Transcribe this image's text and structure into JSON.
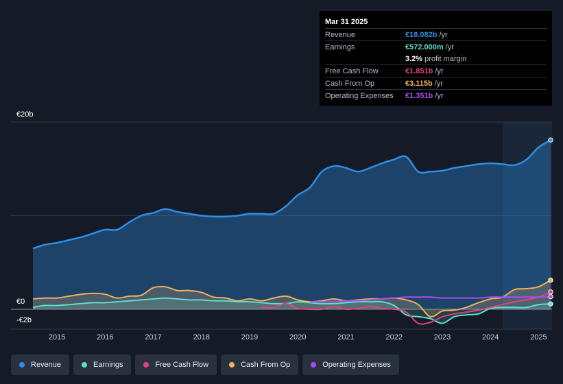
{
  "tooltip": {
    "date": "Mar 31 2025",
    "rows": [
      {
        "label": "Revenue",
        "value": "€18.082b",
        "unit": "/yr",
        "color": "#2e8ee8"
      },
      {
        "label": "Earnings",
        "value": "€572.000m",
        "unit": "/yr",
        "color": "#5be0d0"
      },
      {
        "label": "",
        "value": "3.2%",
        "unit": "profit margin",
        "color": "#ffffff"
      },
      {
        "label": "Free Cash Flow",
        "value": "€1.851b",
        "unit": "/yr",
        "color": "#e2427f"
      },
      {
        "label": "Cash From Op",
        "value": "€3.115b",
        "unit": "/yr",
        "color": "#f0b05e"
      },
      {
        "label": "Operating Expenses",
        "value": "€1.351b",
        "unit": "/yr",
        "color": "#a64ff0"
      }
    ]
  },
  "legend": [
    {
      "label": "Revenue",
      "color": "#2e8ee8"
    },
    {
      "label": "Earnings",
      "color": "#5be0d0"
    },
    {
      "label": "Free Cash Flow",
      "color": "#e2427f"
    },
    {
      "label": "Cash From Op",
      "color": "#f0b05e"
    },
    {
      "label": "Operating Expenses",
      "color": "#a64ff0"
    }
  ],
  "chart_data": {
    "type": "area",
    "title": "",
    "xlabel": "",
    "ylabel": "",
    "y_unit": "€b",
    "ylim": [
      -2,
      20
    ],
    "xlim": [
      2014.5,
      2025.25
    ],
    "y_tick_labels": [
      {
        "value": 20,
        "label": "€20b"
      },
      {
        "value": 0,
        "label": "€0"
      },
      {
        "value": -2,
        "label": "-€2b"
      }
    ],
    "x_tick_labels": [
      "2015",
      "2016",
      "2017",
      "2018",
      "2019",
      "2020",
      "2021",
      "2022",
      "2023",
      "2024",
      "2025"
    ],
    "x_tick_values": [
      2015,
      2016,
      2017,
      2018,
      2019,
      2020,
      2021,
      2022,
      2023,
      2024,
      2025
    ],
    "forecast_region_start": 2024.25,
    "series": [
      {
        "name": "Revenue",
        "color": "#2e8ee8",
        "fill": true,
        "x": [
          2014.5,
          2014.75,
          2015.0,
          2015.25,
          2015.5,
          2015.75,
          2016.0,
          2016.25,
          2016.5,
          2016.75,
          2017.0,
          2017.25,
          2017.5,
          2017.75,
          2018.0,
          2018.25,
          2018.5,
          2018.75,
          2019.0,
          2019.25,
          2019.5,
          2019.75,
          2020.0,
          2020.25,
          2020.5,
          2020.75,
          2021.0,
          2021.25,
          2021.5,
          2021.75,
          2022.0,
          2022.25,
          2022.5,
          2022.75,
          2023.0,
          2023.25,
          2023.5,
          2023.75,
          2024.0,
          2024.25,
          2024.5,
          2024.75,
          2025.0,
          2025.25
        ],
        "values": [
          6.5,
          6.9,
          7.1,
          7.4,
          7.7,
          8.1,
          8.5,
          8.5,
          9.3,
          10.0,
          10.3,
          10.7,
          10.4,
          10.2,
          10.0,
          9.9,
          9.9,
          10.0,
          10.2,
          10.2,
          10.2,
          11.0,
          12.2,
          13.0,
          14.7,
          15.3,
          15.1,
          14.7,
          15.1,
          15.6,
          16.0,
          16.3,
          14.7,
          14.7,
          14.8,
          15.1,
          15.3,
          15.5,
          15.6,
          15.5,
          15.4,
          16.0,
          17.3,
          18.082
        ]
      },
      {
        "name": "Earnings",
        "color": "#5be0d0",
        "fill": true,
        "x": [
          2014.5,
          2014.75,
          2015.0,
          2015.25,
          2015.5,
          2015.75,
          2016.0,
          2016.25,
          2016.5,
          2016.75,
          2017.0,
          2017.25,
          2017.5,
          2017.75,
          2018.0,
          2018.25,
          2018.5,
          2018.75,
          2019.0,
          2019.25,
          2019.5,
          2019.75,
          2020.0,
          2020.25,
          2020.5,
          2020.75,
          2021.0,
          2021.25,
          2021.5,
          2021.75,
          2022.0,
          2022.25,
          2022.5,
          2022.75,
          2023.0,
          2023.25,
          2023.5,
          2023.75,
          2024.0,
          2024.25,
          2024.5,
          2024.75,
          2025.0,
          2025.25
        ],
        "values": [
          0.2,
          0.4,
          0.4,
          0.5,
          0.6,
          0.7,
          0.7,
          0.8,
          0.9,
          1.0,
          1.1,
          1.2,
          1.1,
          1.0,
          1.0,
          0.9,
          0.9,
          0.8,
          0.8,
          0.7,
          0.6,
          0.6,
          0.8,
          0.7,
          0.6,
          0.6,
          0.7,
          0.8,
          0.8,
          0.8,
          0.4,
          -0.6,
          -0.8,
          -1.0,
          -1.5,
          -0.8,
          -0.6,
          -0.5,
          0.1,
          0.2,
          0.2,
          0.2,
          0.5,
          0.572
        ]
      },
      {
        "name": "Free Cash Flow",
        "color": "#e2427f",
        "fill": false,
        "x": [
          2019.25,
          2019.5,
          2019.75,
          2020.0,
          2020.25,
          2020.5,
          2020.75,
          2021.0,
          2021.25,
          2021.5,
          2021.75,
          2022.0,
          2022.25,
          2022.5,
          2022.75,
          2023.0,
          2023.25,
          2023.5,
          2023.75,
          2024.0,
          2024.25,
          2024.5,
          2024.75,
          2025.0,
          2025.25
        ],
        "values": [
          0.2,
          0.2,
          0.6,
          0.1,
          0.0,
          0.0,
          0.3,
          0.0,
          0.1,
          0.3,
          0.1,
          0.0,
          -0.3,
          -1.5,
          -1.4,
          -0.8,
          -0.5,
          -0.3,
          -0.1,
          0.2,
          0.5,
          0.8,
          1.0,
          1.3,
          1.851
        ]
      },
      {
        "name": "Cash From Op",
        "color": "#f0b05e",
        "fill": true,
        "x": [
          2014.5,
          2014.75,
          2015.0,
          2015.25,
          2015.5,
          2015.75,
          2016.0,
          2016.25,
          2016.5,
          2016.75,
          2017.0,
          2017.25,
          2017.5,
          2017.75,
          2018.0,
          2018.25,
          2018.5,
          2018.75,
          2019.0,
          2019.25,
          2019.5,
          2019.75,
          2020.0,
          2020.25,
          2020.5,
          2020.75,
          2021.0,
          2021.25,
          2021.5,
          2021.75,
          2022.0,
          2022.25,
          2022.5,
          2022.75,
          2023.0,
          2023.25,
          2023.5,
          2023.75,
          2024.0,
          2024.25,
          2024.5,
          2024.75,
          2025.0,
          2025.25
        ],
        "values": [
          1.1,
          1.2,
          1.2,
          1.4,
          1.6,
          1.7,
          1.6,
          1.2,
          1.4,
          1.5,
          2.3,
          2.4,
          2.0,
          2.0,
          1.8,
          1.3,
          1.2,
          0.9,
          1.1,
          0.9,
          1.2,
          1.4,
          1.0,
          0.8,
          0.9,
          1.1,
          0.9,
          1.0,
          1.1,
          1.1,
          1.2,
          1.0,
          0.5,
          -0.8,
          -0.2,
          -0.1,
          0.2,
          0.7,
          1.1,
          1.3,
          2.1,
          2.2,
          2.4,
          3.115
        ]
      },
      {
        "name": "Operating Expenses",
        "color": "#a64ff0",
        "fill": false,
        "x": [
          2020.25,
          2020.5,
          2020.75,
          2021.0,
          2021.25,
          2021.5,
          2021.75,
          2022.0,
          2022.25,
          2022.5,
          2022.75,
          2023.0,
          2023.25,
          2023.5,
          2023.75,
          2024.0,
          2024.25,
          2024.5,
          2024.75,
          2025.0,
          2025.25
        ],
        "values": [
          0.8,
          0.8,
          0.8,
          0.9,
          0.9,
          1.0,
          1.1,
          1.2,
          1.3,
          1.3,
          1.3,
          1.2,
          1.2,
          1.2,
          1.2,
          1.3,
          1.3,
          1.3,
          1.3,
          1.3,
          1.351
        ]
      }
    ]
  }
}
